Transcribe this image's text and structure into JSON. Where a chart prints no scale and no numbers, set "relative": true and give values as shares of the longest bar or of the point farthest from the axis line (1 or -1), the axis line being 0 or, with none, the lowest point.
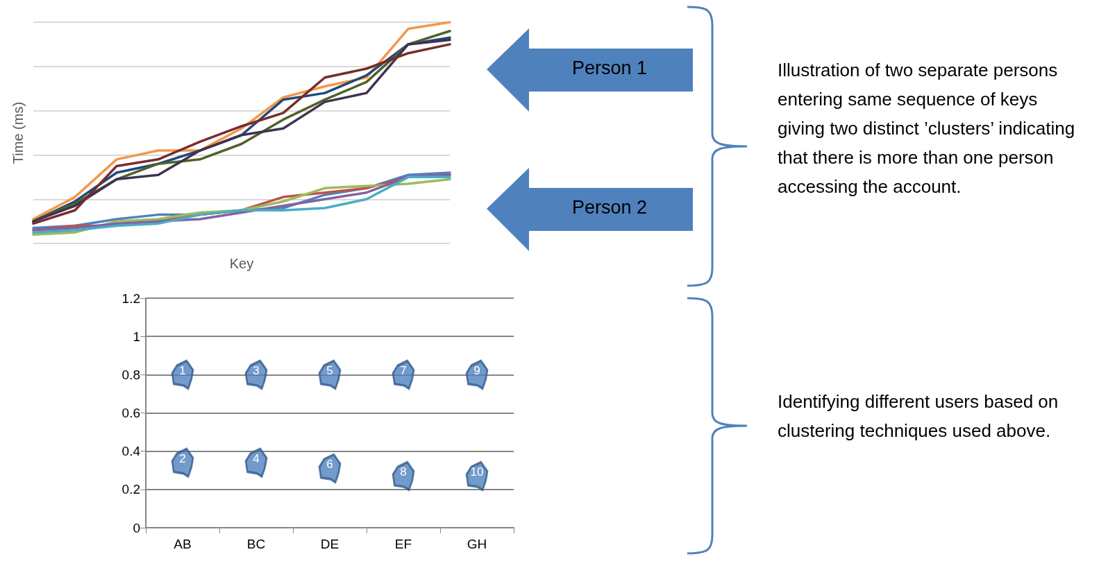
{
  "chart_data": [
    {
      "type": "line",
      "xlabel": "Key",
      "ylabel": "Time (ms)",
      "relative": true,
      "grid": "y",
      "categories": [
        null,
        null,
        null,
        null,
        null,
        null,
        null,
        null,
        null,
        null,
        null
      ],
      "series": [
        {
          "color": "#f79646",
          "values": [
            0.11,
            0.21,
            0.38,
            0.42,
            0.42,
            0.52,
            0.66,
            0.71,
            0.75,
            0.97,
            1
          ]
        },
        {
          "color": "#1f497d",
          "values": [
            0.1,
            0.19,
            0.32,
            0.36,
            0.42,
            0.49,
            0.65,
            0.68,
            0.76,
            0.9,
            0.93
          ]
        },
        {
          "color": "#4f6228",
          "values": [
            0.1,
            0.18,
            0.29,
            0.36,
            0.38,
            0.45,
            0.56,
            0.65,
            0.73,
            0.9,
            0.96
          ]
        },
        {
          "color": "#403152",
          "values": [
            0.1,
            0.17,
            0.29,
            0.31,
            0.42,
            0.49,
            0.52,
            0.64,
            0.68,
            0.9,
            0.92
          ]
        },
        {
          "color": "#772c2a",
          "values": [
            0.09,
            0.15,
            0.35,
            0.38,
            0.46,
            0.53,
            0.59,
            0.75,
            0.79,
            0.86,
            0.9
          ]
        },
        {
          "color": "#4f81bd",
          "values": [
            0.07,
            0.08,
            0.11,
            0.13,
            0.13,
            0.15,
            0.16,
            0.22,
            0.25,
            0.31,
            0.32
          ]
        },
        {
          "color": "#c0504d",
          "values": [
            0.06,
            0.08,
            0.08,
            0.1,
            0.13,
            0.15,
            0.21,
            0.23,
            0.25,
            0.3,
            0.31
          ]
        },
        {
          "color": "#9bbb59",
          "values": [
            0.04,
            0.05,
            0.1,
            0.11,
            0.14,
            0.15,
            0.19,
            0.25,
            0.26,
            0.27,
            0.29
          ]
        },
        {
          "color": "#8064a2",
          "values": [
            0.06,
            0.07,
            0.09,
            0.1,
            0.11,
            0.14,
            0.17,
            0.2,
            0.23,
            0.3,
            0.31
          ]
        },
        {
          "color": "#4bacc6",
          "values": [
            0.05,
            0.06,
            0.08,
            0.09,
            0.13,
            0.15,
            0.15,
            0.16,
            0.2,
            0.3,
            0.3
          ]
        }
      ],
      "annotations": [
        "Person 1",
        "Person 2",
        "Illustration of two separate persons entering same sequence of keys giving two distinct ’clusters’ indicating that there is more than one person accessing the account."
      ]
    },
    {
      "type": "scatter",
      "categories": [
        "AB",
        "BC",
        "DE",
        "EF",
        "GH"
      ],
      "ylim": [
        0,
        1.2
      ],
      "yticks": [
        0,
        0.2,
        0.4,
        0.6,
        0.8,
        1,
        1.2
      ],
      "grid": "y",
      "series": [
        {
          "color": "#4f81bd",
          "x": [
            "AB",
            "BC",
            "DE",
            "EF",
            "GH"
          ],
          "values": [
            0.8,
            0.8,
            0.8,
            0.8,
            0.8
          ]
        },
        {
          "color": "#4f81bd",
          "x": [
            "AB",
            "BC",
            "DE",
            "EF",
            "GH"
          ],
          "values": [
            0.34,
            0.34,
            0.31,
            0.27,
            0.27
          ]
        }
      ],
      "annotations": [
        {
          "text": "1",
          "x": "AB",
          "y": 0.8
        },
        {
          "text": "2",
          "x": "AB",
          "y": 0.34
        },
        {
          "text": "3",
          "x": "BC",
          "y": 0.8
        },
        {
          "text": "4",
          "x": "BC",
          "y": 0.34
        },
        {
          "text": "5",
          "x": "DE",
          "y": 0.8
        },
        {
          "text": "6",
          "x": "DE",
          "y": 0.31
        },
        {
          "text": "7",
          "x": "EF",
          "y": 0.8
        },
        {
          "text": "8",
          "x": "EF",
          "y": 0.27
        },
        {
          "text": "9",
          "x": "GH",
          "y": 0.8
        },
        {
          "text": "10",
          "x": "GH",
          "y": 0.27
        },
        "Identifying different users based on clustering techniques used above."
      ]
    }
  ]
}
